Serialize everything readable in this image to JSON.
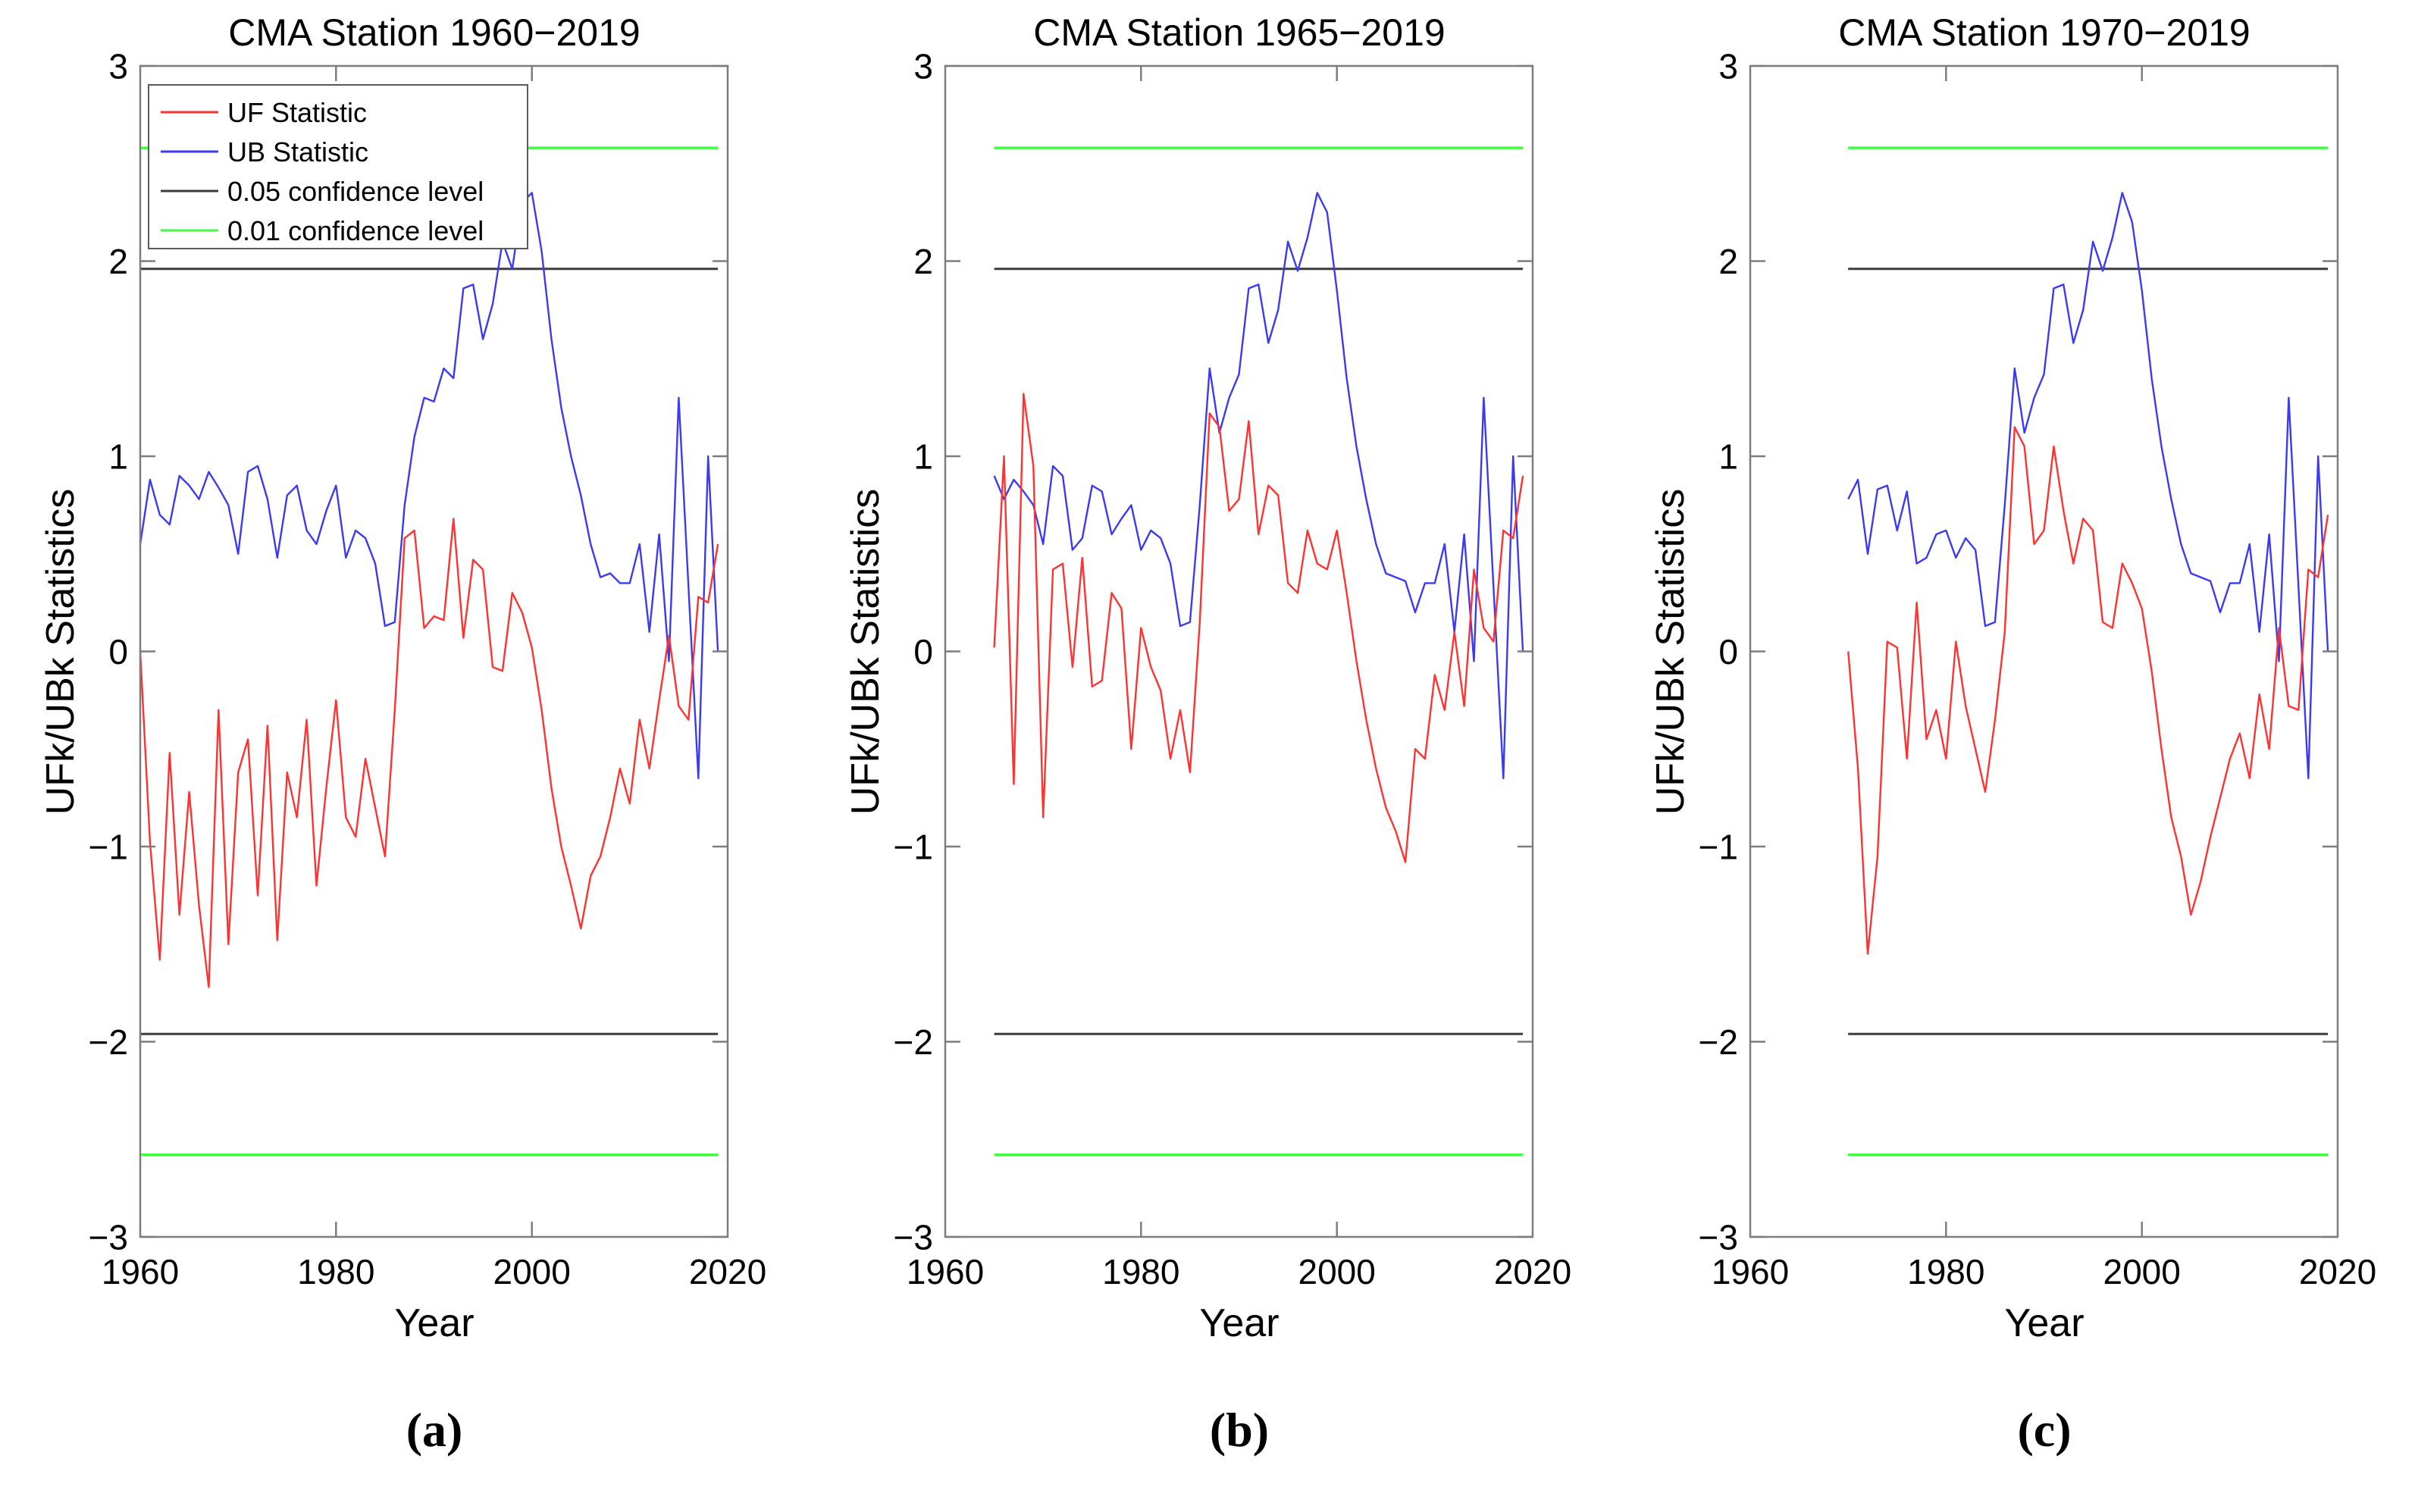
{
  "figure": {
    "background": "#ffffff",
    "colors": {
      "uf": "#ff3232",
      "ub": "#3a3af2",
      "conf05": "#3d3d3d",
      "conf01": "#44fb44",
      "axis": "#7d7d7d",
      "text": "#000000",
      "legend_border": "#5a5a5a",
      "legend_fill": "#ffffff"
    },
    "axes": {
      "ylabel": "UFk/UBk Statistics",
      "xlabel": "Year",
      "ylim": [
        -3,
        3
      ],
      "xlim": [
        1960,
        2020
      ],
      "yticks": [
        -3,
        -2,
        -1,
        0,
        1,
        2,
        3
      ],
      "xtick_labels": [
        1960,
        1980,
        2000,
        2020
      ],
      "xtick_marks": [
        1980,
        2000
      ],
      "grid": "off"
    },
    "legend": {
      "position": "top-left",
      "entries": [
        {
          "label": "UF Statistic",
          "color_key": "uf"
        },
        {
          "label": "UB Statistic",
          "color_key": "ub"
        },
        {
          "label": "0.05 confidence level",
          "color_key": "conf05"
        },
        {
          "label": "0.01 confidence level",
          "color_key": "conf01"
        }
      ]
    },
    "confidence_levels": {
      "p05": 1.96,
      "p01": 2.58
    }
  },
  "chart_data": [
    {
      "type": "line",
      "title": "CMA Station 1960−2019",
      "caption": "(a)",
      "start_year": 1960,
      "end_year": 2019,
      "legend_visible": true,
      "series": [
        {
          "name": "UF Statistic",
          "color_key": "uf",
          "values": [
            0.0,
            -0.98,
            -1.58,
            -0.52,
            -1.35,
            -0.72,
            -1.3,
            -1.72,
            -0.3,
            -1.5,
            -0.62,
            -0.45,
            -1.25,
            -0.38,
            -1.48,
            -0.62,
            -0.85,
            -0.35,
            -1.2,
            -0.7,
            -0.25,
            -0.85,
            -0.95,
            -0.55,
            -0.8,
            -1.05,
            -0.3,
            0.58,
            0.62,
            0.12,
            0.18,
            0.16,
            0.68,
            0.07,
            0.47,
            0.42,
            -0.08,
            -0.1,
            0.3,
            0.2,
            0.02,
            -0.3,
            -0.7,
            -1.0,
            -1.2,
            -1.42,
            -1.15,
            -1.05,
            -0.85,
            -0.6,
            -0.78,
            -0.35,
            -0.6,
            -0.25,
            0.08,
            -0.28,
            -0.35,
            0.28,
            0.25,
            0.55
          ]
        },
        {
          "name": "UB Statistic",
          "color_key": "ub",
          "values": [
            0.55,
            0.88,
            0.7,
            0.65,
            0.9,
            0.85,
            0.78,
            0.92,
            0.84,
            0.75,
            0.5,
            0.92,
            0.95,
            0.78,
            0.48,
            0.8,
            0.85,
            0.62,
            0.55,
            0.72,
            0.85,
            0.48,
            0.62,
            0.58,
            0.45,
            0.13,
            0.15,
            0.75,
            1.1,
            1.3,
            1.28,
            1.45,
            1.4,
            1.86,
            1.88,
            1.6,
            1.78,
            2.1,
            1.96,
            2.3,
            2.35,
            2.05,
            1.6,
            1.25,
            1.0,
            0.8,
            0.55,
            0.38,
            0.4,
            0.35,
            0.35,
            0.55,
            0.1,
            0.6,
            -0.05,
            1.3,
            0.33,
            -0.65,
            1.0,
            0.0
          ]
        }
      ]
    },
    {
      "type": "line",
      "title": "CMA Station 1965−2019",
      "caption": "(b)",
      "start_year": 1965,
      "end_year": 2019,
      "legend_visible": false,
      "series": [
        {
          "name": "UF Statistic",
          "color_key": "uf",
          "values": [
            0.02,
            1.0,
            -0.68,
            1.32,
            0.95,
            -0.85,
            0.42,
            0.45,
            -0.08,
            0.48,
            -0.18,
            -0.15,
            0.3,
            0.22,
            -0.5,
            0.12,
            -0.08,
            -0.2,
            -0.55,
            -0.3,
            -0.62,
            0.15,
            1.22,
            1.15,
            0.72,
            0.78,
            1.18,
            0.6,
            0.85,
            0.8,
            0.35,
            0.3,
            0.62,
            0.45,
            0.42,
            0.62,
            0.3,
            -0.05,
            -0.35,
            -0.6,
            -0.8,
            -0.92,
            -1.08,
            -0.5,
            -0.55,
            -0.12,
            -0.3,
            0.1,
            -0.28,
            0.42,
            0.12,
            0.05,
            0.62,
            0.58,
            0.9
          ]
        },
        {
          "name": "UB Statistic",
          "color_key": "ub",
          "values": [
            0.9,
            0.78,
            0.88,
            0.82,
            0.75,
            0.55,
            0.95,
            0.9,
            0.52,
            0.58,
            0.85,
            0.82,
            0.6,
            0.68,
            0.75,
            0.52,
            0.62,
            0.58,
            0.45,
            0.13,
            0.15,
            0.75,
            1.45,
            1.12,
            1.3,
            1.42,
            1.86,
            1.88,
            1.58,
            1.75,
            2.1,
            1.95,
            2.12,
            2.35,
            2.25,
            1.85,
            1.4,
            1.05,
            0.78,
            0.55,
            0.4,
            0.38,
            0.36,
            0.2,
            0.35,
            0.35,
            0.55,
            0.1,
            0.6,
            -0.05,
            1.3,
            0.33,
            -0.65,
            1.0,
            0.0
          ]
        }
      ]
    },
    {
      "type": "line",
      "title": "CMA Station 1970−2019",
      "caption": "(c)",
      "start_year": 1970,
      "end_year": 2019,
      "legend_visible": false,
      "series": [
        {
          "name": "UF Statistic",
          "color_key": "uf",
          "values": [
            0.0,
            -0.6,
            -1.55,
            -1.05,
            0.05,
            0.02,
            -0.55,
            0.25,
            -0.45,
            -0.3,
            -0.55,
            0.05,
            -0.28,
            -0.5,
            -0.72,
            -0.35,
            0.1,
            1.15,
            1.05,
            0.55,
            0.62,
            1.05,
            0.72,
            0.45,
            0.68,
            0.62,
            0.15,
            0.12,
            0.45,
            0.35,
            0.22,
            -0.1,
            -0.5,
            -0.85,
            -1.05,
            -1.35,
            -1.18,
            -0.95,
            -0.75,
            -0.55,
            -0.42,
            -0.65,
            -0.22,
            -0.5,
            0.12,
            -0.28,
            -0.3,
            0.42,
            0.38,
            0.7
          ]
        },
        {
          "name": "UB Statistic",
          "color_key": "ub",
          "values": [
            0.78,
            0.88,
            0.5,
            0.83,
            0.85,
            0.62,
            0.82,
            0.45,
            0.48,
            0.6,
            0.62,
            0.48,
            0.58,
            0.52,
            0.13,
            0.15,
            0.75,
            1.45,
            1.12,
            1.3,
            1.42,
            1.86,
            1.88,
            1.58,
            1.75,
            2.1,
            1.95,
            2.12,
            2.35,
            2.2,
            1.85,
            1.4,
            1.05,
            0.78,
            0.55,
            0.4,
            0.38,
            0.36,
            0.2,
            0.35,
            0.35,
            0.55,
            0.1,
            0.6,
            -0.05,
            1.3,
            0.33,
            -0.65,
            1.0,
            0.0
          ]
        }
      ]
    }
  ]
}
